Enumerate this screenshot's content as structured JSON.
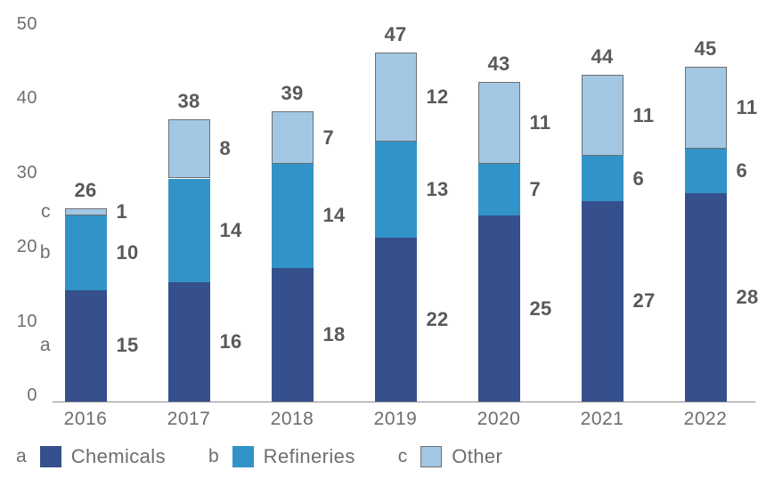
{
  "chart_data": {
    "type": "bar",
    "stacked": true,
    "title": "",
    "xlabel": "",
    "ylabel": "",
    "categories": [
      "2016",
      "2017",
      "2018",
      "2019",
      "2020",
      "2021",
      "2022"
    ],
    "series": [
      {
        "letter": "a",
        "name": "Chemicals",
        "color": "#35508c",
        "values": [
          15,
          16,
          18,
          22,
          25,
          27,
          28
        ]
      },
      {
        "letter": "b",
        "name": "Refineries",
        "color": "#3193c7",
        "values": [
          10,
          14,
          14,
          13,
          7,
          6,
          6
        ]
      },
      {
        "letter": "c",
        "name": "Other",
        "color": "#a2c7e3",
        "border_color": "#6d6e71",
        "values": [
          1,
          8,
          7,
          12,
          11,
          11,
          11
        ]
      }
    ],
    "totals": [
      26,
      38,
      39,
      47,
      43,
      44,
      45
    ],
    "y_ticks": [
      0,
      10,
      20,
      30,
      40,
      50
    ],
    "ylim": [
      0,
      50
    ],
    "grid": false,
    "legend_position": "bottom"
  },
  "colors": {
    "value_label": "#58595b",
    "axis_label": "#6d6e71",
    "axis_line": "#8a8c8e",
    "background": "#ffffff"
  }
}
